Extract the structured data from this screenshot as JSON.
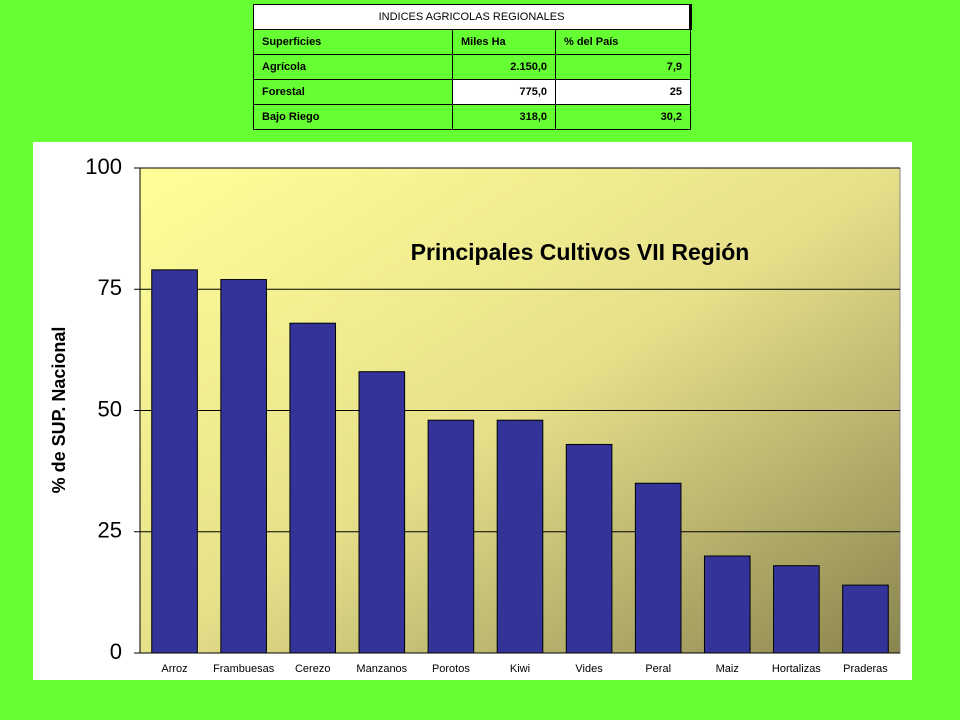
{
  "table": {
    "title": "INDICES AGRICOLAS REGIONALES",
    "header": [
      "Superficies",
      "Miles Ha",
      "% del País"
    ],
    "rows": [
      [
        "Agrícola",
        "2.150,0",
        "7,9"
      ],
      [
        "Forestal",
        "775,0",
        "25"
      ],
      [
        "Bajo Riego",
        "318,0",
        "30,2"
      ]
    ]
  },
  "chart_data": {
    "type": "bar",
    "title": "Principales Cultivos VII Región",
    "y_label": "% de SUP. Nacional",
    "categories": [
      "Arroz",
      "Frambuesas",
      "Cerezo",
      "Manzanos",
      "Porotos",
      "Kiwi",
      "Vides",
      "Peral",
      "Maiz",
      "Hortalizas",
      "Praderas"
    ],
    "values": [
      79,
      77,
      68,
      58,
      48,
      48,
      43,
      35,
      20,
      18,
      14
    ],
    "color": "#333399",
    "ylim": [
      0,
      100
    ],
    "yticks": [
      0,
      25,
      50,
      75,
      100
    ],
    "grid": true
  }
}
